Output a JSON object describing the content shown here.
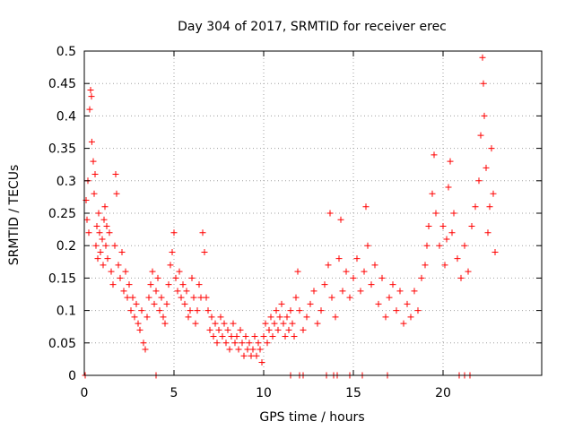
{
  "chart_data": {
    "type": "scatter",
    "title": "Day 304 of 2017, SRMTID for receiver erec",
    "xlabel": "GPS time / hours",
    "ylabel": "SRMTID / TECUs",
    "xlim": [
      0,
      25.5
    ],
    "ylim": [
      0,
      0.5
    ],
    "x_ticks": [
      0,
      5,
      10,
      15,
      20
    ],
    "y_ticks": [
      0,
      0.05,
      0.1,
      0.15,
      0.2,
      0.25,
      0.3,
      0.35,
      0.4,
      0.45,
      0.5
    ],
    "x_tick_labels": [
      "0",
      "5",
      "10",
      "15",
      "20"
    ],
    "y_tick_labels": [
      "0",
      "0.05",
      "0.1",
      "0.15",
      "0.2",
      "0.25",
      "0.3",
      "0.35",
      "0.4",
      "0.45",
      "0.5"
    ],
    "grid": true,
    "marker": "+",
    "color": "#ff0000",
    "series": [
      {
        "name": "SRMTID",
        "points": [
          [
            0.1,
            0.27
          ],
          [
            0.15,
            0.24
          ],
          [
            0.2,
            0.3
          ],
          [
            0.25,
            0.22
          ],
          [
            0.3,
            0.41
          ],
          [
            0.35,
            0.44
          ],
          [
            0.4,
            0.43
          ],
          [
            0.42,
            0.36
          ],
          [
            0.5,
            0.33
          ],
          [
            0.55,
            0.28
          ],
          [
            0.6,
            0.31
          ],
          [
            0.65,
            0.2
          ],
          [
            0.7,
            0.23
          ],
          [
            0.75,
            0.18
          ],
          [
            0.8,
            0.25
          ],
          [
            0.85,
            0.22
          ],
          [
            0.9,
            0.19
          ],
          [
            1.0,
            0.21
          ],
          [
            1.05,
            0.17
          ],
          [
            1.1,
            0.24
          ],
          [
            1.15,
            0.26
          ],
          [
            1.2,
            0.2
          ],
          [
            1.25,
            0.23
          ],
          [
            1.3,
            0.18
          ],
          [
            1.4,
            0.22
          ],
          [
            1.5,
            0.16
          ],
          [
            1.6,
            0.14
          ],
          [
            1.7,
            0.2
          ],
          [
            1.75,
            0.31
          ],
          [
            1.8,
            0.28
          ],
          [
            1.9,
            0.17
          ],
          [
            2.0,
            0.15
          ],
          [
            2.1,
            0.19
          ],
          [
            2.2,
            0.13
          ],
          [
            2.3,
            0.16
          ],
          [
            2.4,
            0.12
          ],
          [
            2.5,
            0.14
          ],
          [
            2.6,
            0.1
          ],
          [
            2.7,
            0.12
          ],
          [
            2.8,
            0.09
          ],
          [
            2.9,
            0.11
          ],
          [
            3.0,
            0.08
          ],
          [
            3.1,
            0.07
          ],
          [
            3.2,
            0.1
          ],
          [
            3.3,
            0.05
          ],
          [
            3.4,
            0.04
          ],
          [
            3.5,
            0.09
          ],
          [
            3.6,
            0.12
          ],
          [
            3.7,
            0.14
          ],
          [
            3.8,
            0.16
          ],
          [
            3.9,
            0.11
          ],
          [
            4.0,
            0.13
          ],
          [
            4.1,
            0.15
          ],
          [
            4.2,
            0.1
          ],
          [
            4.3,
            0.12
          ],
          [
            4.4,
            0.09
          ],
          [
            4.5,
            0.08
          ],
          [
            4.6,
            0.11
          ],
          [
            4.7,
            0.14
          ],
          [
            4.8,
            0.17
          ],
          [
            4.9,
            0.19
          ],
          [
            5.0,
            0.22
          ],
          [
            5.1,
            0.15
          ],
          [
            5.2,
            0.13
          ],
          [
            5.3,
            0.16
          ],
          [
            5.4,
            0.12
          ],
          [
            5.5,
            0.14
          ],
          [
            5.6,
            0.11
          ],
          [
            5.7,
            0.13
          ],
          [
            5.8,
            0.09
          ],
          [
            5.9,
            0.1
          ],
          [
            6.0,
            0.15
          ],
          [
            6.1,
            0.12
          ],
          [
            6.2,
            0.08
          ],
          [
            6.3,
            0.1
          ],
          [
            6.4,
            0.14
          ],
          [
            6.5,
            0.12
          ],
          [
            6.6,
            0.22
          ],
          [
            6.7,
            0.19
          ],
          [
            6.8,
            0.12
          ],
          [
            6.9,
            0.1
          ],
          [
            7.0,
            0.07
          ],
          [
            7.1,
            0.09
          ],
          [
            7.2,
            0.06
          ],
          [
            7.3,
            0.08
          ],
          [
            7.4,
            0.05
          ],
          [
            7.5,
            0.07
          ],
          [
            7.6,
            0.09
          ],
          [
            7.7,
            0.06
          ],
          [
            7.8,
            0.08
          ],
          [
            7.9,
            0.05
          ],
          [
            8.0,
            0.07
          ],
          [
            8.1,
            0.04
          ],
          [
            8.2,
            0.06
          ],
          [
            8.3,
            0.08
          ],
          [
            8.4,
            0.05
          ],
          [
            8.5,
            0.06
          ],
          [
            8.6,
            0.04
          ],
          [
            8.7,
            0.07
          ],
          [
            8.8,
            0.05
          ],
          [
            8.9,
            0.03
          ],
          [
            9.0,
            0.06
          ],
          [
            9.1,
            0.04
          ],
          [
            9.2,
            0.05
          ],
          [
            9.3,
            0.03
          ],
          [
            9.4,
            0.04
          ],
          [
            9.5,
            0.06
          ],
          [
            9.6,
            0.03
          ],
          [
            9.7,
            0.05
          ],
          [
            9.8,
            0.04
          ],
          [
            9.9,
            0.02
          ],
          [
            10.0,
            0.06
          ],
          [
            10.1,
            0.08
          ],
          [
            10.2,
            0.05
          ],
          [
            10.3,
            0.07
          ],
          [
            10.4,
            0.09
          ],
          [
            10.5,
            0.06
          ],
          [
            10.6,
            0.08
          ],
          [
            10.7,
            0.1
          ],
          [
            10.8,
            0.07
          ],
          [
            10.9,
            0.09
          ],
          [
            11.0,
            0.11
          ],
          [
            11.1,
            0.08
          ],
          [
            11.2,
            0.06
          ],
          [
            11.3,
            0.09
          ],
          [
            11.4,
            0.07
          ],
          [
            11.5,
            0.1
          ],
          [
            11.6,
            0.08
          ],
          [
            11.7,
            0.06
          ],
          [
            11.8,
            0.12
          ],
          [
            11.9,
            0.16
          ],
          [
            12.0,
            0.1
          ],
          [
            12.2,
            0.07
          ],
          [
            12.4,
            0.09
          ],
          [
            12.6,
            0.11
          ],
          [
            12.8,
            0.13
          ],
          [
            13.0,
            0.08
          ],
          [
            13.2,
            0.1
          ],
          [
            13.4,
            0.14
          ],
          [
            13.6,
            0.17
          ],
          [
            13.7,
            0.25
          ],
          [
            13.8,
            0.12
          ],
          [
            14.0,
            0.09
          ],
          [
            14.2,
            0.18
          ],
          [
            14.3,
            0.24
          ],
          [
            14.4,
            0.13
          ],
          [
            14.6,
            0.16
          ],
          [
            14.8,
            0.12
          ],
          [
            15.0,
            0.15
          ],
          [
            15.2,
            0.18
          ],
          [
            15.4,
            0.13
          ],
          [
            15.6,
            0.16
          ],
          [
            15.7,
            0.26
          ],
          [
            15.8,
            0.2
          ],
          [
            16.0,
            0.14
          ],
          [
            16.2,
            0.17
          ],
          [
            16.4,
            0.11
          ],
          [
            16.6,
            0.15
          ],
          [
            16.8,
            0.09
          ],
          [
            17.0,
            0.12
          ],
          [
            17.2,
            0.14
          ],
          [
            17.4,
            0.1
          ],
          [
            17.6,
            0.13
          ],
          [
            17.8,
            0.08
          ],
          [
            18.0,
            0.11
          ],
          [
            18.2,
            0.09
          ],
          [
            18.4,
            0.13
          ],
          [
            18.6,
            0.1
          ],
          [
            18.8,
            0.15
          ],
          [
            19.0,
            0.17
          ],
          [
            19.1,
            0.2
          ],
          [
            19.2,
            0.23
          ],
          [
            19.4,
            0.28
          ],
          [
            19.5,
            0.34
          ],
          [
            19.6,
            0.25
          ],
          [
            19.8,
            0.2
          ],
          [
            20.0,
            0.23
          ],
          [
            20.1,
            0.17
          ],
          [
            20.2,
            0.21
          ],
          [
            20.3,
            0.29
          ],
          [
            20.4,
            0.33
          ],
          [
            20.5,
            0.22
          ],
          [
            20.6,
            0.25
          ],
          [
            20.8,
            0.18
          ],
          [
            21.0,
            0.15
          ],
          [
            21.2,
            0.2
          ],
          [
            21.4,
            0.16
          ],
          [
            21.6,
            0.23
          ],
          [
            21.8,
            0.26
          ],
          [
            22.0,
            0.3
          ],
          [
            22.1,
            0.37
          ],
          [
            22.2,
            0.49
          ],
          [
            22.25,
            0.45
          ],
          [
            22.3,
            0.4
          ],
          [
            22.4,
            0.32
          ],
          [
            22.5,
            0.22
          ],
          [
            22.6,
            0.26
          ],
          [
            22.7,
            0.35
          ],
          [
            22.8,
            0.28
          ],
          [
            22.9,
            0.19
          ]
        ]
      },
      {
        "name": "zero-line markers",
        "points": [
          [
            0.05,
            0
          ],
          [
            4.0,
            0
          ],
          [
            11.5,
            0
          ],
          [
            12.0,
            0
          ],
          [
            12.2,
            0
          ],
          [
            13.5,
            0
          ],
          [
            13.9,
            0
          ],
          [
            14.1,
            0
          ],
          [
            14.8,
            0
          ],
          [
            15.5,
            0
          ],
          [
            16.9,
            0
          ],
          [
            20.9,
            0
          ],
          [
            21.2,
            0
          ],
          [
            21.5,
            0
          ]
        ]
      }
    ]
  }
}
